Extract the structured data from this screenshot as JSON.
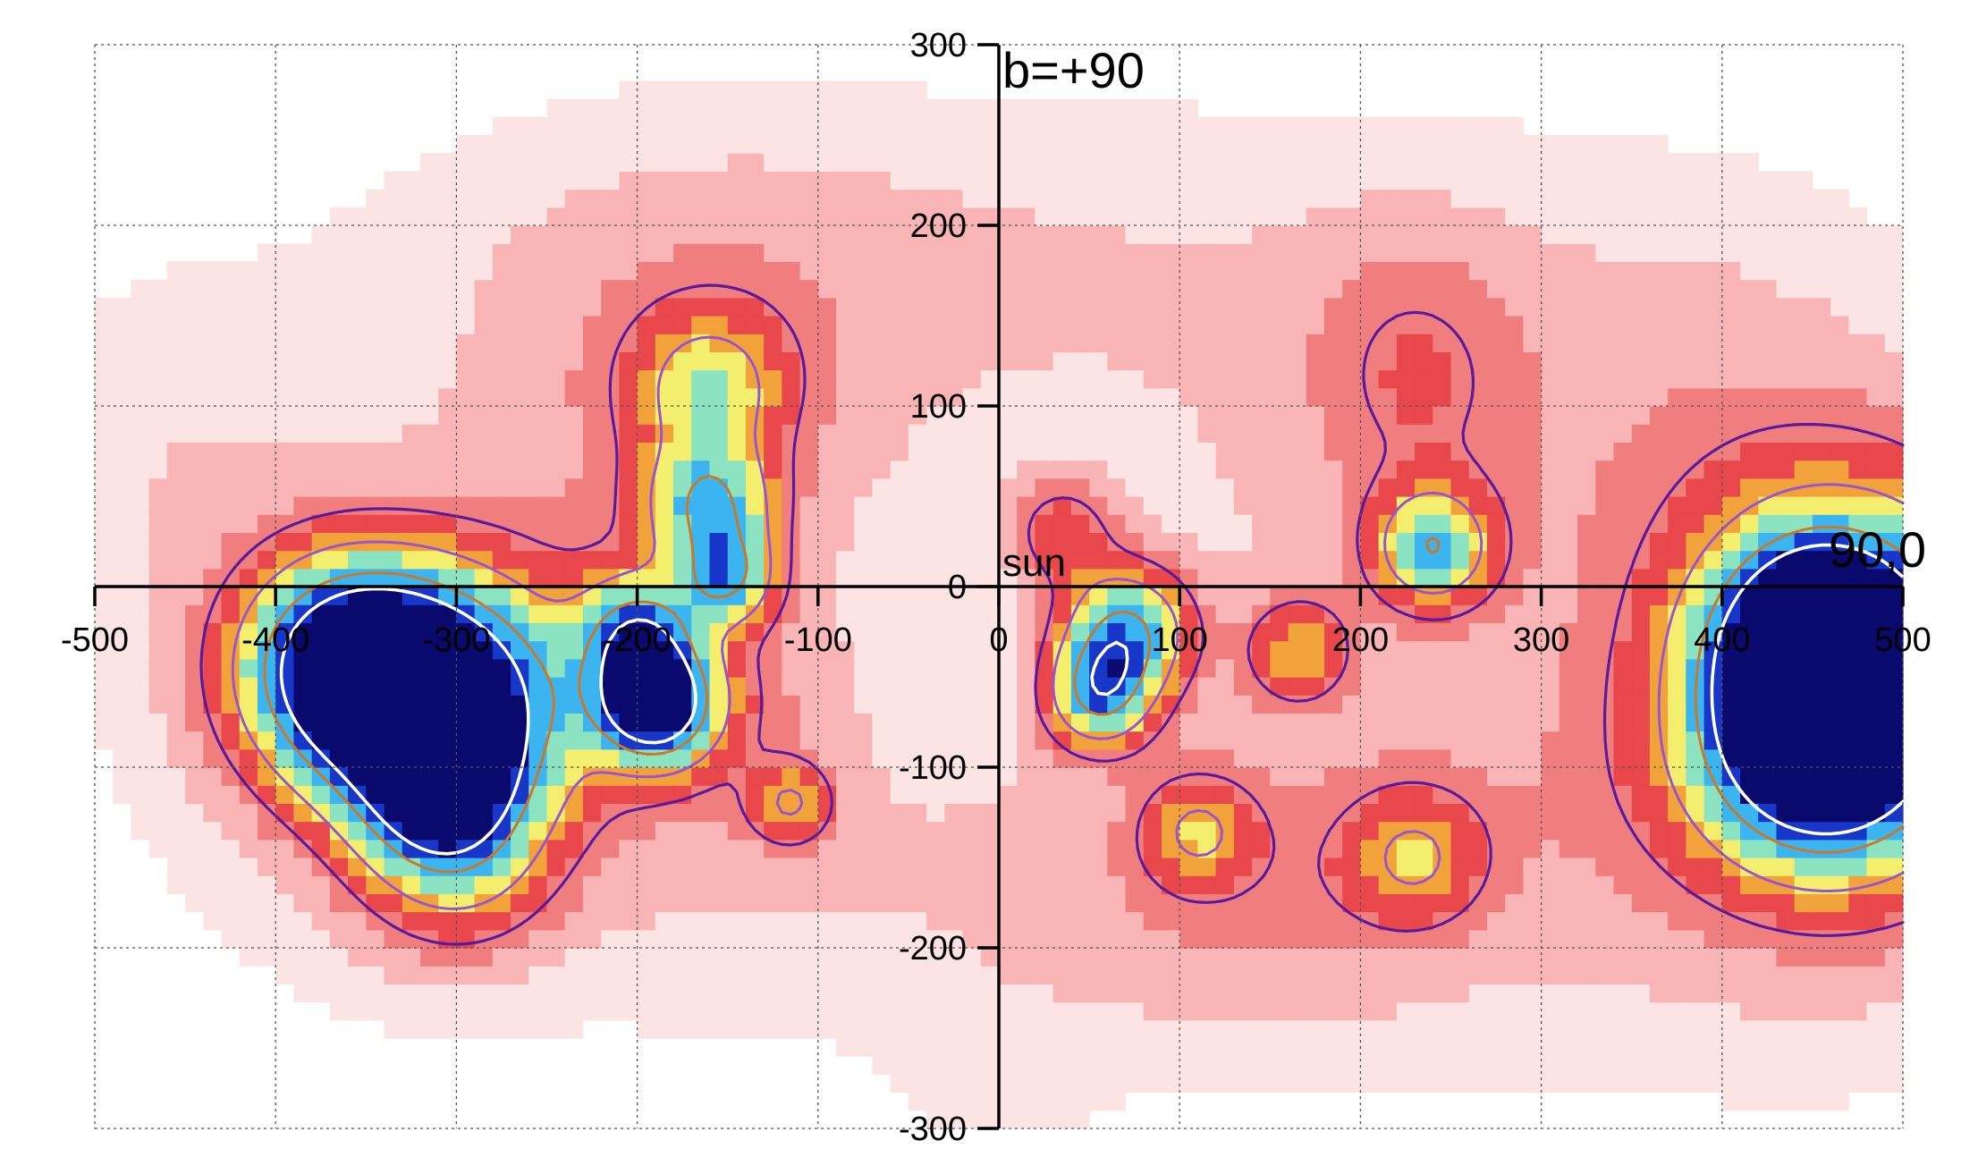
{
  "chart_data": {
    "type": "heatmap",
    "title": "",
    "xlabel": "",
    "ylabel": "",
    "xlim": [
      -500,
      500
    ],
    "ylim": [
      -300,
      300
    ],
    "grid": true,
    "x_ticks": [
      -500,
      -400,
      -300,
      -200,
      -100,
      0,
      100,
      200,
      300,
      400,
      500
    ],
    "y_ticks": [
      -300,
      -200,
      -100,
      0,
      100,
      200,
      300
    ],
    "x_tick_labels": [
      "-500",
      "-400",
      "-300",
      "-200",
      "-100",
      "0",
      "100",
      "200",
      "300",
      "400",
      "500"
    ],
    "y_tick_labels": [
      "-300",
      "-200",
      "-100",
      "0",
      "100",
      "200",
      "300"
    ],
    "annotations": [
      {
        "text": "b=+90",
        "x": 0,
        "y": 290
      },
      {
        "text": "sun",
        "x": 0,
        "y": 3
      },
      {
        "text": "90,0",
        "x": 500,
        "y": 10
      }
    ],
    "colorscale": [
      "#fde4e4",
      "#f9b5b5",
      "#f07e7e",
      "#e8474c",
      "#f2a23a",
      "#f3ee6e",
      "#8be3c2",
      "#3bb4f0",
      "#1836c8",
      "#0a0a6e"
    ],
    "contour_colors": [
      "#5a1a9e",
      "#9b55c9",
      "#c87a2a",
      "#ffffff"
    ],
    "diffuse_regions": [
      {
        "cx": -80,
        "cy": 180,
        "rx": 270,
        "ry": 90,
        "level": 0.9
      },
      {
        "cx": -350,
        "cy": -10,
        "rx": 140,
        "ry": 110,
        "level": 0.8
      },
      {
        "cx": -460,
        "cy": 80,
        "rx": 80,
        "ry": 90,
        "level": 0.6
      },
      {
        "cx": -120,
        "cy": -150,
        "rx": 120,
        "ry": 100,
        "level": 0.7
      },
      {
        "cx": 210,
        "cy": 70,
        "rx": 180,
        "ry": 150,
        "level": 0.9
      },
      {
        "cx": 280,
        "cy": -140,
        "rx": 280,
        "ry": 120,
        "level": 0.9
      },
      {
        "cx": 390,
        "cy": 120,
        "rx": 120,
        "ry": 110,
        "level": 0.7
      },
      {
        "cx": 0,
        "cy": -300,
        "rx": 60,
        "ry": 90,
        "level": 0.4
      },
      {
        "cx": -170,
        "cy": 90,
        "rx": 120,
        "ry": 120,
        "level": 1.4
      },
      {
        "cx": 230,
        "cy": 120,
        "rx": 60,
        "ry": 80,
        "level": 1.4
      },
      {
        "cx": 130,
        "cy": -170,
        "rx": 130,
        "ry": 80,
        "level": 1.2
      },
      {
        "cx": -170,
        "cy": -60,
        "rx": 70,
        "ry": 60,
        "level": 1.4
      },
      {
        "cx": -310,
        "cy": -110,
        "rx": 130,
        "ry": 110,
        "level": 1.3
      },
      {
        "cx": 460,
        "cy": -60,
        "rx": 140,
        "ry": 160,
        "level": 1.4
      }
    ],
    "sources": [
      {
        "x": -360,
        "y": -45,
        "s": 40,
        "amp": 9.5
      },
      {
        "x": -305,
        "y": -65,
        "s": 45,
        "amp": 9.5
      },
      {
        "x": -310,
        "y": -110,
        "s": 28,
        "amp": 5.5
      },
      {
        "x": -300,
        "y": -150,
        "s": 35,
        "amp": 3.2
      },
      {
        "x": -200,
        "y": -25,
        "s": 22,
        "amp": 5.5
      },
      {
        "x": -190,
        "y": -65,
        "s": 22,
        "amp": 9.5
      },
      {
        "x": -160,
        "y": 110,
        "s": 28,
        "amp": 3.5
      },
      {
        "x": -160,
        "y": 45,
        "s": 24,
        "amp": 5.5
      },
      {
        "x": -150,
        "y": 5,
        "s": 18,
        "amp": 5.0
      },
      {
        "x": -115,
        "y": -120,
        "s": 16,
        "amp": 3.0
      },
      {
        "x": 35,
        "y": 30,
        "s": 20,
        "amp": 2.6
      },
      {
        "x": 70,
        "y": -25,
        "s": 24,
        "amp": 6.5
      },
      {
        "x": 55,
        "y": -60,
        "s": 20,
        "amp": 6.0
      },
      {
        "x": 110,
        "y": -135,
        "s": 20,
        "amp": 2.8
      },
      {
        "x": 165,
        "y": -35,
        "s": 20,
        "amp": 3.0
      },
      {
        "x": 230,
        "y": -150,
        "s": 25,
        "amp": 2.8
      },
      {
        "x": 240,
        "y": 22,
        "s": 22,
        "amp": 5.5
      },
      {
        "x": 455,
        "y": -30,
        "s": 35,
        "amp": 9.5
      },
      {
        "x": 455,
        "y": -85,
        "s": 42,
        "amp": 10.0
      },
      {
        "x": 470,
        "y": -10,
        "s": 60,
        "amp": 3.0
      },
      {
        "x": 480,
        "y": -70,
        "s": 70,
        "amp": 3.0
      }
    ]
  }
}
